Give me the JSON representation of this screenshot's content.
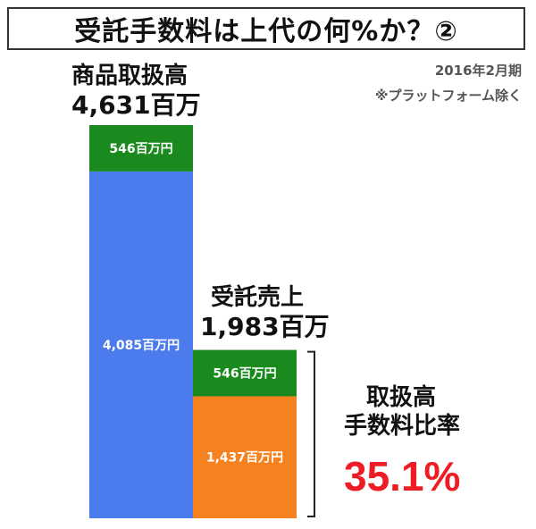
{
  "title": "受託手数料は上代の何%か？②",
  "notes": {
    "period": "2016年2月期",
    "exclusion": "※プラットフォーム除く"
  },
  "labels": {
    "gmv_label": "商品取扱高",
    "gmv_value": "4,631百万",
    "consign_label": "受託売上",
    "consign_value": "1,983百万",
    "rate_label_line1": "取扱高",
    "rate_label_line2": "手数料比率",
    "rate_value": "35.1%"
  },
  "colors": {
    "blue": "#4b7bec",
    "green": "#1a8a1f",
    "orange": "#f6821f",
    "red": "#ee1c25"
  },
  "chart_data": {
    "type": "bar",
    "unit": "百万円",
    "stacked": true,
    "bars": [
      {
        "name": "商品取扱高",
        "total": 4631,
        "segments": [
          {
            "value": 4085,
            "label": "4,085百万円",
            "color": "#4b7bec"
          },
          {
            "value": 546,
            "label": "546百万円",
            "color": "#1a8a1f"
          }
        ]
      },
      {
        "name": "受託売上",
        "total": 1983,
        "segments": [
          {
            "value": 1437,
            "label": "1,437百万円",
            "color": "#f6821f"
          },
          {
            "value": 546,
            "label": "546百万円",
            "color": "#1a8a1f"
          }
        ]
      }
    ],
    "ratio": 35.1
  }
}
